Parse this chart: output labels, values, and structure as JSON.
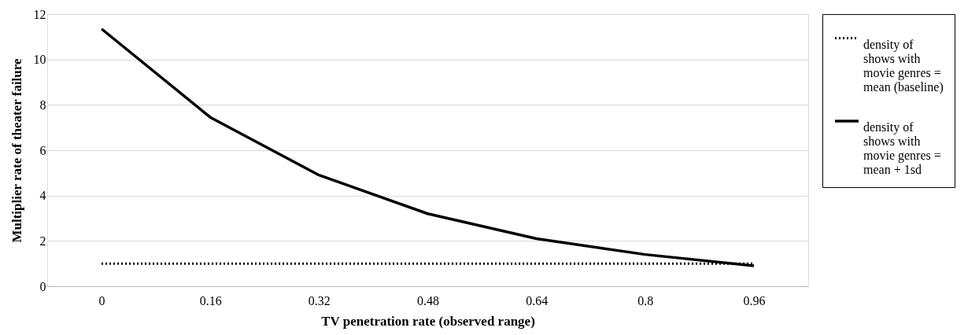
{
  "chart_data": {
    "type": "line",
    "xlabel": "TV penetration rate (observed range)",
    "ylabel": "Multiplier rate of theater failure",
    "categories": [
      "0",
      "0.16",
      "0.32",
      "0.48",
      "0.64",
      "0.8",
      "0.96"
    ],
    "series": [
      {
        "name": "density of shows with movie genres = mean (baseline)",
        "color": "#000000",
        "line_style": "dotted",
        "values": [
          1,
          1,
          1,
          1,
          1,
          1,
          1
        ]
      },
      {
        "name": "density of shows with movie genres = mean + 1sd",
        "color": "#000000",
        "line_style": "solid",
        "values": [
          11.35,
          7.45,
          4.9,
          3.2,
          2.1,
          1.4,
          0.9
        ]
      }
    ],
    "ylim": [
      0,
      12
    ],
    "yticks": [
      0,
      2,
      4,
      6,
      8,
      10,
      12
    ],
    "grid": "y",
    "legend": "right",
    "marker": "none"
  }
}
